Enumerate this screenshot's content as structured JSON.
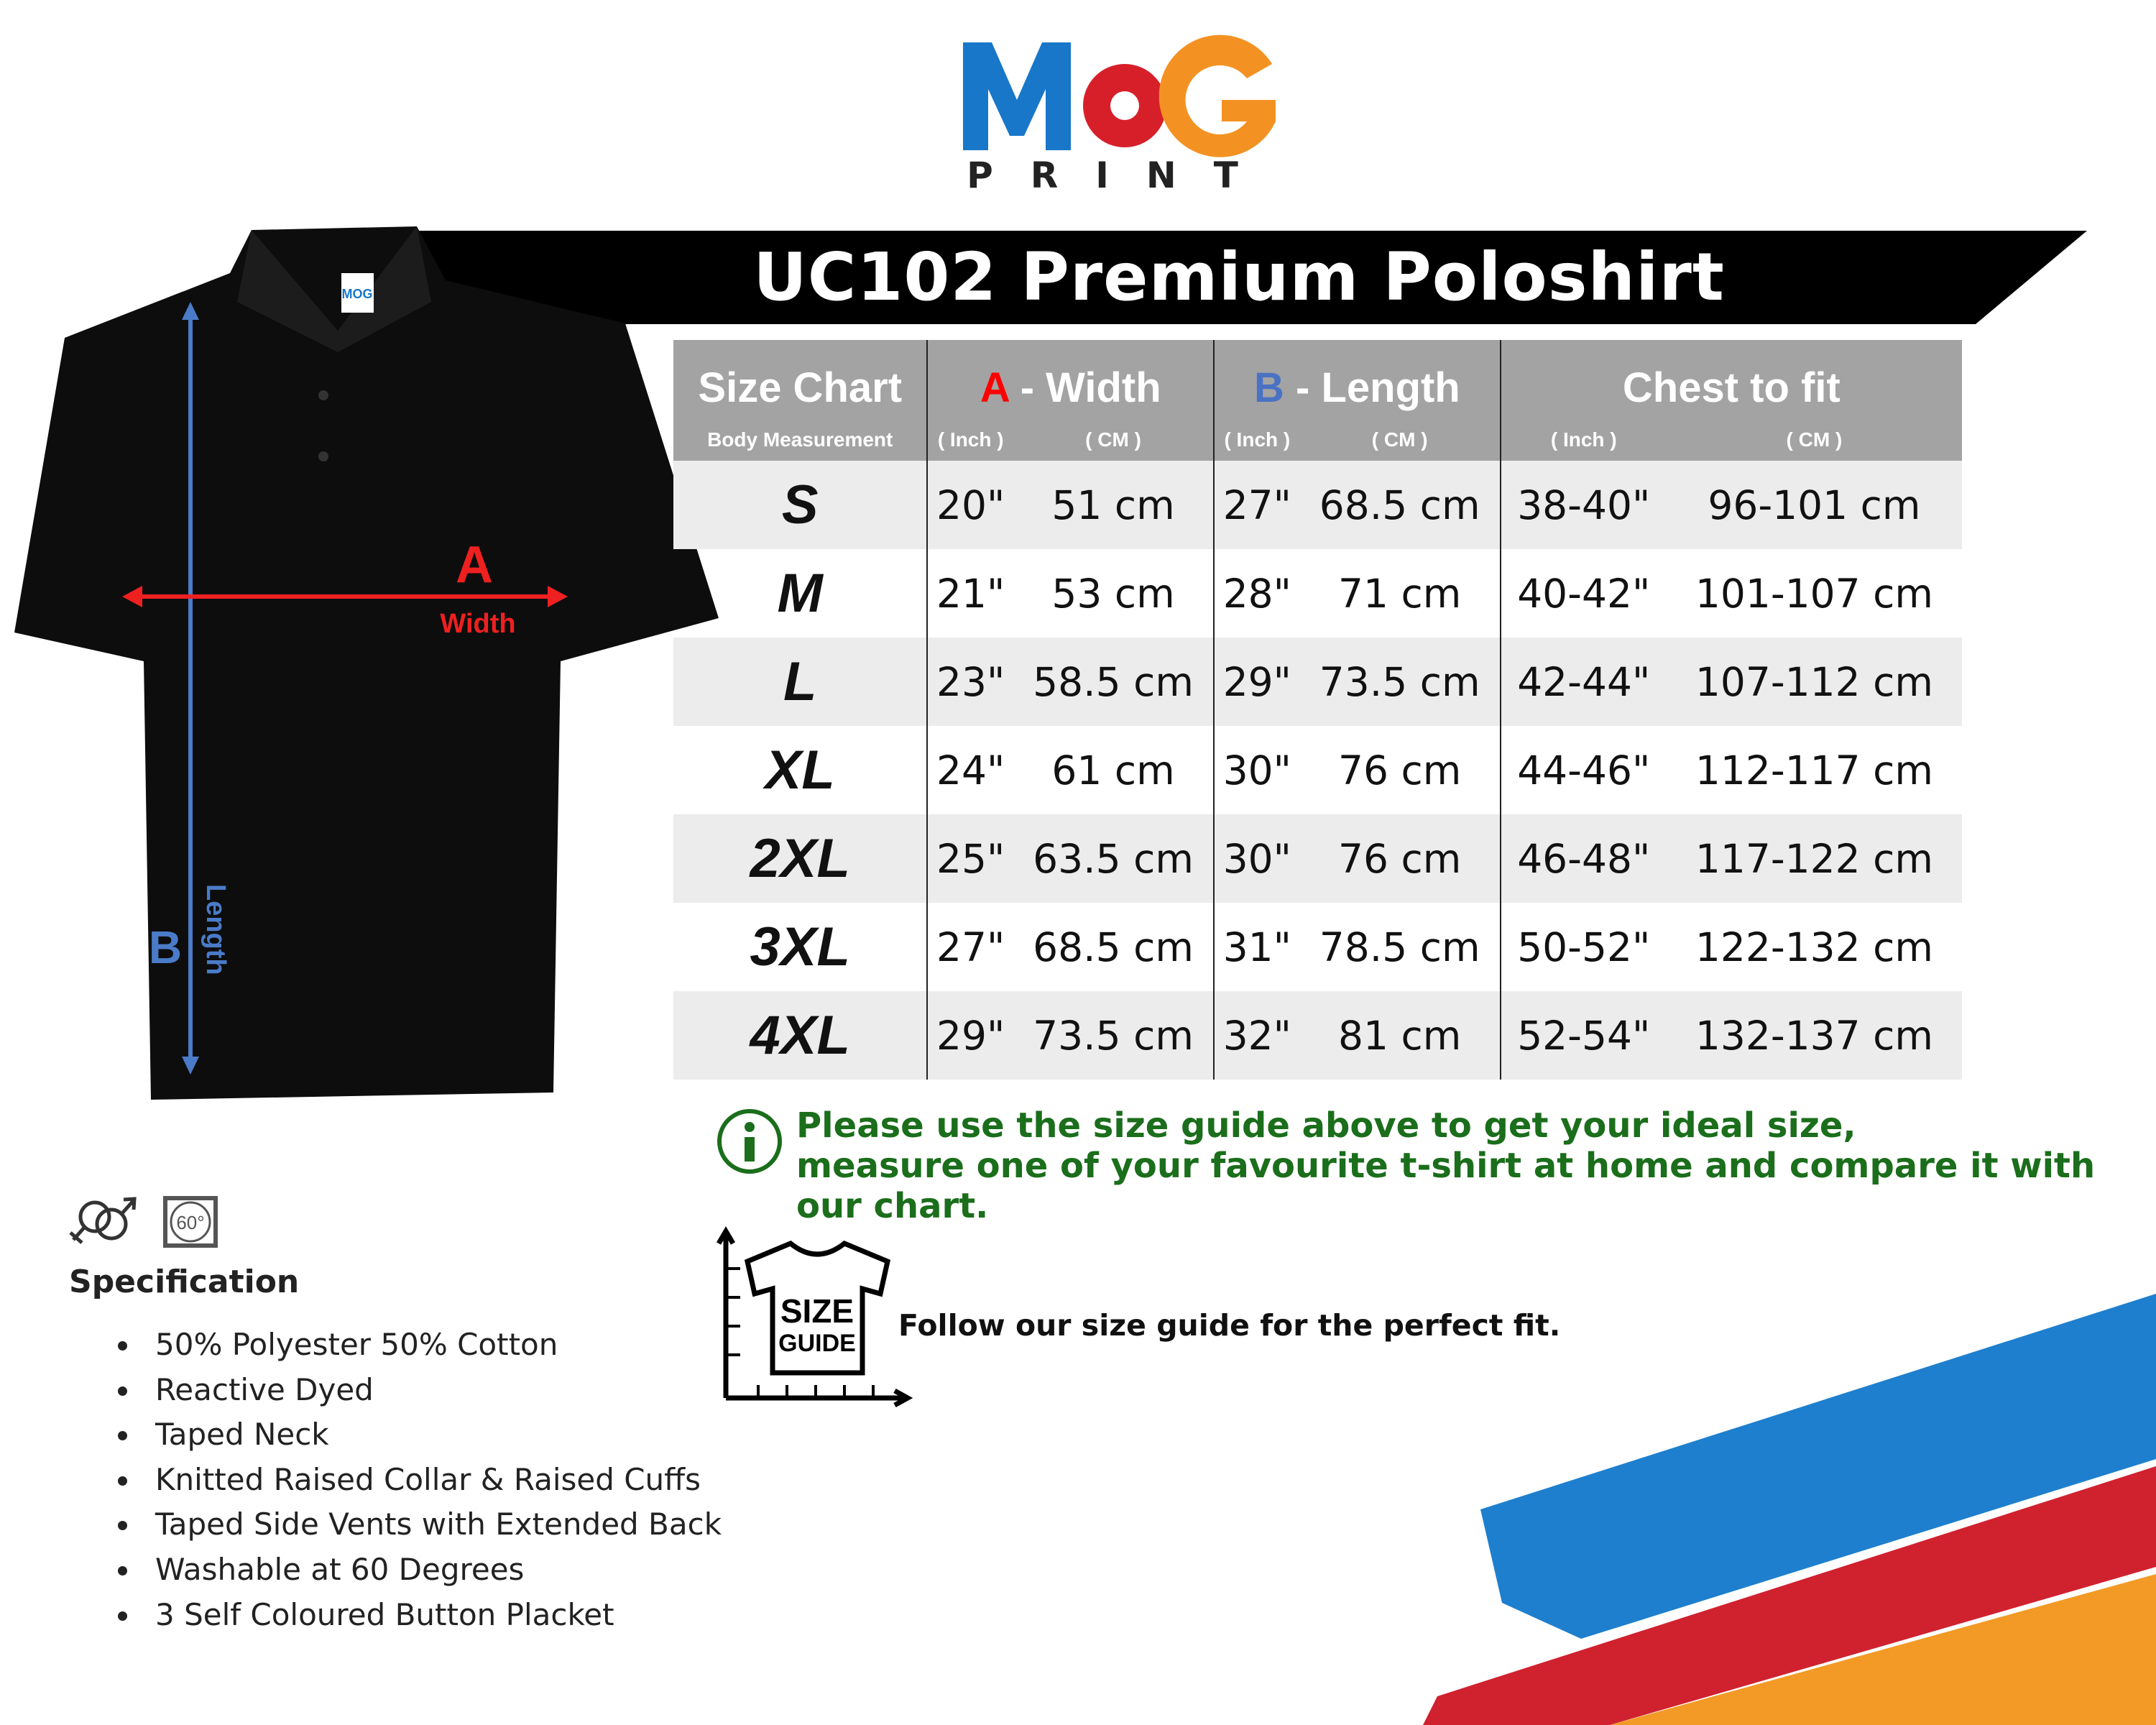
{
  "brand": {
    "logo_text": "MOG",
    "logo_subtext": "PRINT",
    "colors": {
      "blue": "#1877c9",
      "red": "#d71f2a",
      "orange": "#f39223"
    }
  },
  "title": "UC102 Premium Poloshirt",
  "table": {
    "headers": {
      "size": "Size Chart",
      "size_sub": "Body Measurement",
      "width_letter": "A",
      "width_label": " - Width",
      "length_letter": "B",
      "length_label": " - Length",
      "chest": "Chest to fit",
      "inch": "( Inch )",
      "cm": "( CM )"
    },
    "rows": [
      {
        "size": "S",
        "w_in": "20\"",
        "w_cm": "51 cm",
        "l_in": "27\"",
        "l_cm": "68.5 cm",
        "c_in": "38-40\"",
        "c_cm": "96-101 cm"
      },
      {
        "size": "M",
        "w_in": "21\"",
        "w_cm": "53 cm",
        "l_in": "28\"",
        "l_cm": "71 cm",
        "c_in": "40-42\"",
        "c_cm": "101-107 cm"
      },
      {
        "size": "L",
        "w_in": "23\"",
        "w_cm": "58.5 cm",
        "l_in": "29\"",
        "l_cm": "73.5 cm",
        "c_in": "42-44\"",
        "c_cm": "107-112 cm"
      },
      {
        "size": "XL",
        "w_in": "24\"",
        "w_cm": "61 cm",
        "l_in": "30\"",
        "l_cm": "76 cm",
        "c_in": "44-46\"",
        "c_cm": "112-117 cm"
      },
      {
        "size": "2XL",
        "w_in": "25\"",
        "w_cm": "63.5 cm",
        "l_in": "30\"",
        "l_cm": "76 cm",
        "c_in": "46-48\"",
        "c_cm": "117-122 cm"
      },
      {
        "size": "3XL",
        "w_in": "27\"",
        "w_cm": "68.5 cm",
        "l_in": "31\"",
        "l_cm": "78.5 cm",
        "c_in": "50-52\"",
        "c_cm": "122-132 cm"
      },
      {
        "size": "4XL",
        "w_in": "29\"",
        "w_cm": "73.5 cm",
        "l_in": "32\"",
        "l_cm": "81 cm",
        "c_in": "52-54\"",
        "c_cm": "132-137 cm"
      }
    ]
  },
  "shirt": {
    "a_letter": "A",
    "a_label": "Width",
    "b_letter": "B",
    "b_label": "Length",
    "tag": "MOG"
  },
  "info": {
    "line1": "Please use the size guide above to get your ideal size,",
    "line2": "measure one of your favourite t-shirt at home and compare it with our chart.",
    "color": "#1b6e1b"
  },
  "size_guide": {
    "icon_line1": "SIZE",
    "icon_line2": "GUIDE",
    "text": "Follow our size guide for the perfect fit."
  },
  "spec": {
    "icon_wash": "60°",
    "title": "Specification",
    "items": [
      "50% Polyester 50% Cotton",
      "Reactive Dyed",
      "Taped Neck",
      "Knitted Raised Collar & Raised Cuffs",
      "Taped Side Vents with Extended Back",
      "Washable at 60 Degrees",
      "3 Self Coloured Button Placket"
    ]
  }
}
